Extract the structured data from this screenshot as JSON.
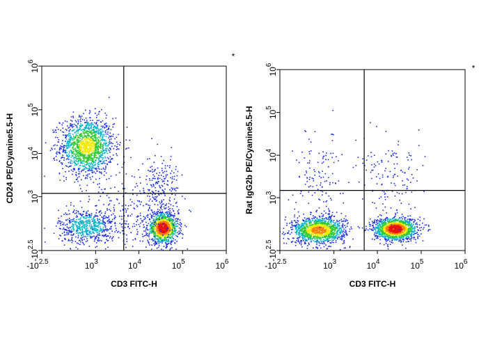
{
  "chart_data": [
    {
      "type": "scatter",
      "x_label": "CD3 FITC-H",
      "y_label": "CD24 PE/Cyanine5.5-H",
      "note": "*",
      "xlim": [
        -316.2,
        1000000
      ],
      "ylim": [
        -316.2,
        1000000
      ],
      "xticks": [
        {
          "value": -316.2,
          "label": "-10",
          "sup": "2.5"
        },
        {
          "value": 1000,
          "label": "10",
          "sup": "3"
        },
        {
          "value": 10000,
          "label": "10",
          "sup": "4"
        },
        {
          "value": 100000,
          "label": "10",
          "sup": "5"
        },
        {
          "value": 1000000,
          "label": "10",
          "sup": "6"
        }
      ],
      "yticks": [
        {
          "value": -316.2,
          "label": "-10",
          "sup": "2.5"
        },
        {
          "value": 1000,
          "label": "10",
          "sup": "3"
        },
        {
          "value": 10000,
          "label": "10",
          "sup": "4"
        },
        {
          "value": 100000,
          "label": "10",
          "sup": "5"
        },
        {
          "value": 1000000,
          "label": "10",
          "sup": "6"
        }
      ],
      "gates": {
        "x": 4500,
        "y": 1200
      },
      "populations": [
        {
          "x": 600,
          "y": 15000,
          "sx": 0.7,
          "sy": 0.75,
          "n": 1500,
          "peak": 0.6
        },
        {
          "x": 600,
          "y": 120,
          "sx": 0.75,
          "sy": 0.45,
          "n": 600,
          "peak": 0.3
        },
        {
          "x": 35000,
          "y": 90,
          "sx": 0.4,
          "sy": 0.4,
          "n": 1100,
          "peak": 1
        },
        {
          "x": 30000,
          "y": 1500,
          "sx": 0.5,
          "sy": 0.9,
          "n": 220,
          "peak": 0.12
        },
        {
          "x": 6000,
          "y": 300,
          "sx": 1.2,
          "sy": 1.5,
          "n": 250,
          "peak": 0.1
        }
      ]
    },
    {
      "type": "scatter",
      "x_label": "CD3 FITC-H",
      "y_label": "Rat IgG2b PE/Cyanine5.5-H",
      "note": "*",
      "xlim": [
        -316.2,
        1000000
      ],
      "ylim": [
        -316.2,
        1000000
      ],
      "xticks": [
        {
          "value": -316.2,
          "label": "-10",
          "sup": "2.5"
        },
        {
          "value": 1000,
          "label": "10",
          "sup": "3"
        },
        {
          "value": 10000,
          "label": "10",
          "sup": "4"
        },
        {
          "value": 100000,
          "label": "10",
          "sup": "5"
        },
        {
          "value": 1000000,
          "label": "10",
          "sup": "6"
        }
      ],
      "yticks": [
        {
          "value": -316.2,
          "label": "-10",
          "sup": "2.5"
        },
        {
          "value": 1000,
          "label": "10",
          "sup": "3"
        },
        {
          "value": 10000,
          "label": "10",
          "sup": "4"
        },
        {
          "value": 100000,
          "label": "10",
          "sup": "5"
        },
        {
          "value": 1000000,
          "label": "10",
          "sup": "6"
        }
      ],
      "gates": {
        "x": 5000,
        "y": 1500
      },
      "populations": [
        {
          "x": 400,
          "y": 60,
          "sx": 0.7,
          "sy": 0.35,
          "n": 1300,
          "peak": 0.75
        },
        {
          "x": 25000,
          "y": 80,
          "sx": 0.55,
          "sy": 0.3,
          "n": 1400,
          "peak": 1
        },
        {
          "x": 400,
          "y": 3000,
          "sx": 0.6,
          "sy": 1.3,
          "n": 140,
          "peak": 0.1
        },
        {
          "x": 20000,
          "y": 2500,
          "sx": 0.9,
          "sy": 1.0,
          "n": 140,
          "peak": 0.1
        }
      ]
    }
  ]
}
